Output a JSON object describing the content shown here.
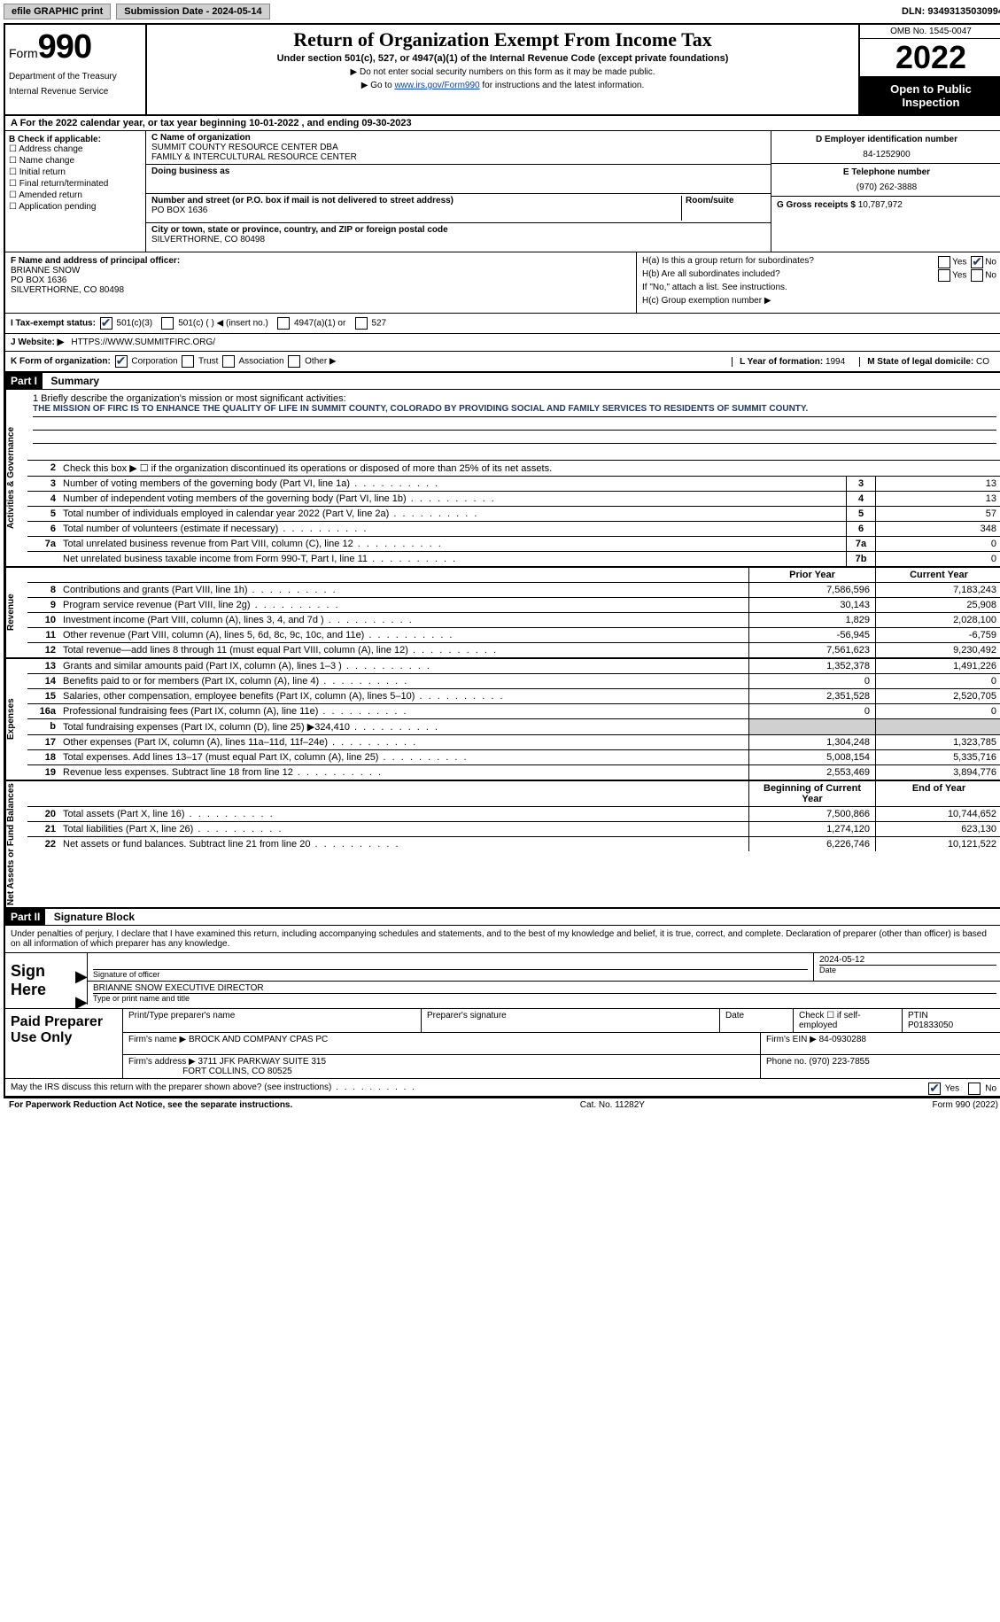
{
  "topbar": {
    "efile": "efile GRAPHIC print",
    "subdate_lbl": "Submission Date - 2024-05-14",
    "dln_lbl": "DLN: 93493135030994"
  },
  "header": {
    "form_word": "Form",
    "form_num": "990",
    "dept": "Department of the Treasury",
    "irs": "Internal Revenue Service",
    "title": "Return of Organization Exempt From Income Tax",
    "sub": "Under section 501(c), 527, or 4947(a)(1) of the Internal Revenue Code (except private foundations)",
    "tri1": "▶ Do not enter social security numbers on this form as it may be made public.",
    "tri2_a": "▶ Go to ",
    "tri2_link": "www.irs.gov/Form990",
    "tri2_b": " for instructions and the latest information.",
    "omb": "OMB No. 1545-0047",
    "year": "2022",
    "open": "Open to Public Inspection"
  },
  "rowA": "A For the 2022 calendar year, or tax year beginning 10-01-2022    , and ending 09-30-2023",
  "boxB": {
    "hdr": "B Check if applicable:",
    "items": [
      "Address change",
      "Name change",
      "Initial return",
      "Final return/terminated",
      "Amended return",
      "Application pending"
    ]
  },
  "boxC": {
    "name_lbl": "C Name of organization",
    "name1": "SUMMIT COUNTY RESOURCE CENTER DBA",
    "name2": "FAMILY & INTERCULTURAL RESOURCE CENTER",
    "dba_lbl": "Doing business as",
    "street_lbl": "Number and street (or P.O. box if mail is not delivered to street address)",
    "room_lbl": "Room/suite",
    "street": "PO BOX 1636",
    "city_lbl": "City or town, state or province, country, and ZIP or foreign postal code",
    "city": "SILVERTHORNE, CO  80498"
  },
  "boxD": {
    "ein_lbl": "D Employer identification number",
    "ein": "84-1252900",
    "tel_lbl": "E Telephone number",
    "tel": "(970) 262-3888",
    "gross_lbl": "G Gross receipts $",
    "gross": "10,787,972"
  },
  "boxF": {
    "lbl": "F  Name and address of principal officer:",
    "name": "BRIANNE SNOW",
    "addr1": "PO BOX 1636",
    "addr2": "SILVERTHORNE, CO  80498"
  },
  "boxH": {
    "ha": "H(a)  Is this a group return for subordinates?",
    "hb": "H(b)  Are all subordinates included?",
    "hb2": "If \"No,\" attach a list. See instructions.",
    "hc": "H(c)  Group exemption number ▶",
    "yes": "Yes",
    "no": "No"
  },
  "rowI": {
    "lbl": "I    Tax-exempt status:",
    "o1": "501(c)(3)",
    "o2": "501(c) (   ) ◀ (insert no.)",
    "o3": "4947(a)(1) or",
    "o4": "527"
  },
  "rowJ": {
    "lbl": "J   Website: ▶",
    "url": "HTTPS://WWW.SUMMITFIRC.ORG/"
  },
  "rowK": {
    "lbl": "K Form of organization:",
    "o1": "Corporation",
    "o2": "Trust",
    "o3": "Association",
    "o4": "Other ▶",
    "L_lbl": "L Year of formation:",
    "L_val": "1994",
    "M_lbl": "M State of legal domicile:",
    "M_val": "CO"
  },
  "part1": {
    "bar": "Part I",
    "title": "Summary",
    "q1": "1   Briefly describe the organization's mission or most significant activities:",
    "mission": "THE MISSION OF FIRC IS TO ENHANCE THE QUALITY OF LIFE IN SUMMIT COUNTY, COLORADO BY PROVIDING SOCIAL AND FAMILY SERVICES TO RESIDENTS OF SUMMIT COUNTY.",
    "q2": "Check this box ▶ ☐  if the organization discontinued its operations or disposed of more than 25% of its net assets.",
    "vlabel1": "Activities & Governance",
    "vlabel2": "Revenue",
    "vlabel3": "Expenses",
    "vlabel4": "Net Assets or Fund Balances",
    "rows_ag": [
      {
        "n": "3",
        "t": "Number of voting members of the governing body (Part VI, line 1a)",
        "b": "3",
        "v": "13"
      },
      {
        "n": "4",
        "t": "Number of independent voting members of the governing body (Part VI, line 1b)",
        "b": "4",
        "v": "13"
      },
      {
        "n": "5",
        "t": "Total number of individuals employed in calendar year 2022 (Part V, line 2a)",
        "b": "5",
        "v": "57"
      },
      {
        "n": "6",
        "t": "Total number of volunteers (estimate if necessary)",
        "b": "6",
        "v": "348"
      },
      {
        "n": "7a",
        "t": "Total unrelated business revenue from Part VIII, column (C), line 12",
        "b": "7a",
        "v": "0"
      },
      {
        "n": "",
        "t": "Net unrelated business taxable income from Form 990-T, Part I, line 11",
        "b": "7b",
        "v": "0"
      }
    ],
    "rev_hdr": {
      "c1": "Prior Year",
      "c2": "Current Year"
    },
    "rows_rev": [
      {
        "n": "8",
        "t": "Contributions and grants (Part VIII, line 1h)",
        "v1": "7,586,596",
        "v2": "7,183,243"
      },
      {
        "n": "9",
        "t": "Program service revenue (Part VIII, line 2g)",
        "v1": "30,143",
        "v2": "25,908"
      },
      {
        "n": "10",
        "t": "Investment income (Part VIII, column (A), lines 3, 4, and 7d )",
        "v1": "1,829",
        "v2": "2,028,100"
      },
      {
        "n": "11",
        "t": "Other revenue (Part VIII, column (A), lines 5, 6d, 8c, 9c, 10c, and 11e)",
        "v1": "-56,945",
        "v2": "-6,759"
      },
      {
        "n": "12",
        "t": "Total revenue—add lines 8 through 11 (must equal Part VIII, column (A), line 12)",
        "v1": "7,561,623",
        "v2": "9,230,492"
      }
    ],
    "rows_exp": [
      {
        "n": "13",
        "t": "Grants and similar amounts paid (Part IX, column (A), lines 1–3 )",
        "v1": "1,352,378",
        "v2": "1,491,226"
      },
      {
        "n": "14",
        "t": "Benefits paid to or for members (Part IX, column (A), line 4)",
        "v1": "0",
        "v2": "0"
      },
      {
        "n": "15",
        "t": "Salaries, other compensation, employee benefits (Part IX, column (A), lines 5–10)",
        "v1": "2,351,528",
        "v2": "2,520,705"
      },
      {
        "n": "16a",
        "t": "Professional fundraising fees (Part IX, column (A), line 11e)",
        "v1": "0",
        "v2": "0"
      },
      {
        "n": "b",
        "t": "Total fundraising expenses (Part IX, column (D), line 25) ▶324,410",
        "v1": "",
        "v2": "",
        "shade": true
      },
      {
        "n": "17",
        "t": "Other expenses (Part IX, column (A), lines 11a–11d, 11f–24e)",
        "v1": "1,304,248",
        "v2": "1,323,785"
      },
      {
        "n": "18",
        "t": "Total expenses. Add lines 13–17 (must equal Part IX, column (A), line 25)",
        "v1": "5,008,154",
        "v2": "5,335,716"
      },
      {
        "n": "19",
        "t": "Revenue less expenses. Subtract line 18 from line 12",
        "v1": "2,553,469",
        "v2": "3,894,776"
      }
    ],
    "na_hdr": {
      "c1": "Beginning of Current Year",
      "c2": "End of Year"
    },
    "rows_na": [
      {
        "n": "20",
        "t": "Total assets (Part X, line 16)",
        "v1": "7,500,866",
        "v2": "10,744,652"
      },
      {
        "n": "21",
        "t": "Total liabilities (Part X, line 26)",
        "v1": "1,274,120",
        "v2": "623,130"
      },
      {
        "n": "22",
        "t": "Net assets or fund balances. Subtract line 21 from line 20",
        "v1": "6,226,746",
        "v2": "10,121,522"
      }
    ]
  },
  "part2": {
    "bar": "Part II",
    "title": "Signature Block",
    "decl": "Under penalties of perjury, I declare that I have examined this return, including accompanying schedules and statements, and to the best of my knowledge and belief, it is true, correct, and complete. Declaration of preparer (other than officer) is based on all information of which preparer has any knowledge.",
    "sign_here": "Sign Here",
    "sig_officer": "Signature of officer",
    "date": "Date",
    "sig_date": "2024-05-12",
    "type_name": "BRIANNE SNOW  EXECUTIVE DIRECTOR",
    "type_lbl": "Type or print name and title",
    "paid": "Paid Preparer Use Only",
    "p_name_lbl": "Print/Type preparer's name",
    "p_sig_lbl": "Preparer's signature",
    "p_date_lbl": "Date",
    "p_check_lbl": "Check ☐ if self-employed",
    "ptin_lbl": "PTIN",
    "ptin": "P01833050",
    "firm_name_lbl": "Firm's name    ▶",
    "firm_name": "BROCK AND COMPANY CPAS PC",
    "firm_ein_lbl": "Firm's EIN ▶",
    "firm_ein": "84-0930288",
    "firm_addr_lbl": "Firm's address ▶",
    "firm_addr1": "3711 JFK PARKWAY SUITE 315",
    "firm_addr2": "FORT COLLINS, CO  80525",
    "phone_lbl": "Phone no.",
    "phone": "(970) 223-7855",
    "may_discuss": "May the IRS discuss this return with the preparer shown above? (see instructions)"
  },
  "footer": {
    "l": "For Paperwork Reduction Act Notice, see the separate instructions.",
    "m": "Cat. No. 11282Y",
    "r": "Form 990 (2022)"
  }
}
